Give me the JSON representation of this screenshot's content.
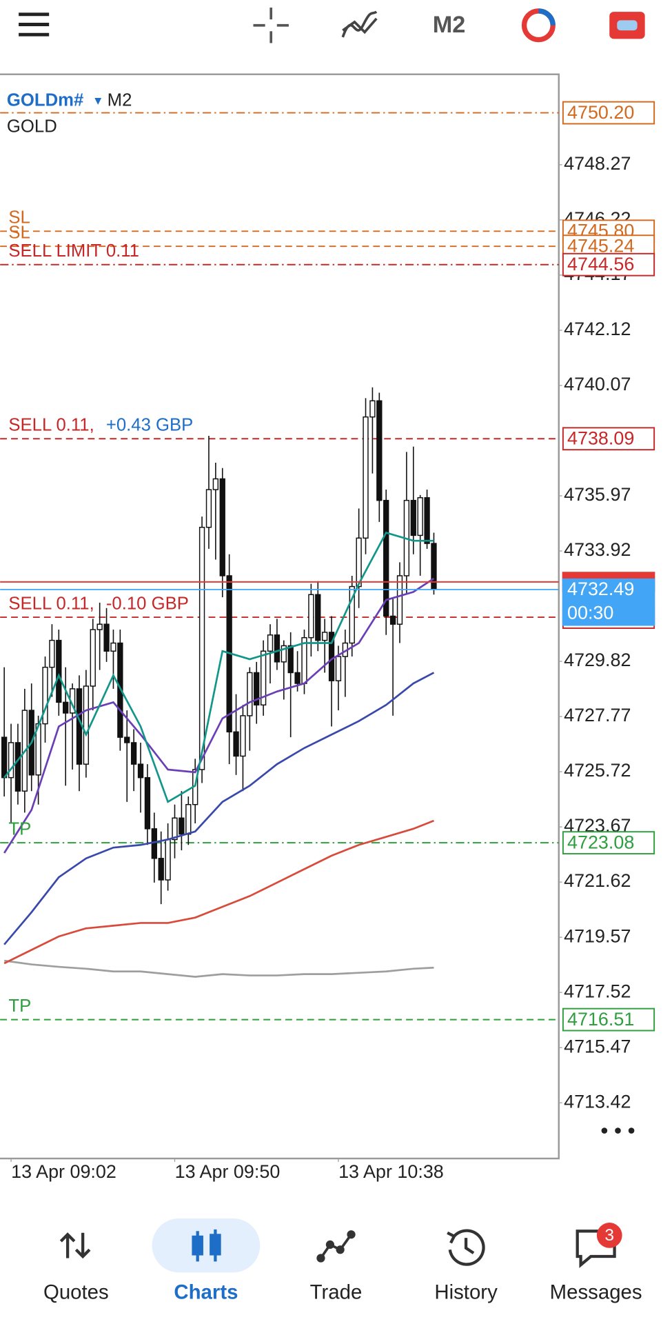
{
  "toolbar": {
    "timeframe": "M2"
  },
  "chart_data": {
    "type": "candlestick",
    "symbol": "GOLDm#",
    "timeframe": "M2",
    "description": "GOLD",
    "categories": [
      null,
      "13 Apr 09:02",
      null,
      null,
      null,
      null,
      null,
      null,
      null,
      null,
      null,
      null,
      null,
      null,
      null,
      null,
      null,
      null,
      null,
      null,
      null,
      null,
      null,
      null,
      null,
      "13 Apr 09:50",
      null,
      null,
      null,
      null,
      null,
      null,
      null,
      null,
      null,
      null,
      null,
      null,
      null,
      null,
      null,
      null,
      null,
      null,
      null,
      null,
      null,
      null,
      null,
      "13 Apr 10:38",
      null,
      null,
      null,
      null,
      null,
      null,
      null,
      null,
      null,
      null,
      null,
      null,
      null,
      null
    ],
    "open": [
      4727.0,
      4725.5,
      4726.8,
      4725.0,
      4728.0,
      4725.6,
      4727.5,
      4729.6,
      4730.6,
      4728.3,
      4727.9,
      4728.8,
      4726.0,
      4728.9,
      4731.0,
      4731.2,
      4730.2,
      4730.5,
      4727.0,
      4726.8,
      4726.0,
      4725.5,
      4723.6,
      4722.5,
      4721.7,
      4723.2,
      4724.0,
      4723.4,
      4724.5,
      4725.8,
      4734.8,
      4736.2,
      4736.6,
      4733.0,
      4727.2,
      4726.3,
      4727.8,
      4729.4,
      4728.2,
      4730.2,
      4730.8,
      4729.8,
      4730.4,
      4729.4,
      4729.0,
      4730.7,
      4732.3,
      4730.6,
      4730.9,
      4729.1,
      4730.0,
      4730.5,
      4732.6,
      4734.4,
      4738.9,
      4739.5,
      4735.8,
      4731.5,
      4731.2,
      4733.0,
      4735.8,
      4734.5,
      4735.9,
      4734.2
    ],
    "high": [
      4729.6,
      4727.5,
      4727.5,
      4728.8,
      4729.0,
      4727.8,
      4730.0,
      4731.2,
      4731.0,
      4729.6,
      4729.0,
      4729.3,
      4729.5,
      4731.4,
      4732.0,
      4731.8,
      4731.0,
      4731.0,
      4728.0,
      4727.3,
      4726.8,
      4726.0,
      4724.2,
      4723.5,
      4723.8,
      4724.5,
      4725.0,
      4724.8,
      4726.2,
      4735.2,
      4738.2,
      4737.2,
      4737.0,
      4733.8,
      4728.6,
      4728.2,
      4729.6,
      4729.8,
      4730.6,
      4731.2,
      4731.4,
      4730.6,
      4730.9,
      4730.2,
      4731.0,
      4732.7,
      4732.8,
      4731.4,
      4731.5,
      4730.4,
      4731.0,
      4733.0,
      4735.5,
      4739.6,
      4740.0,
      4739.8,
      4736.2,
      4732.2,
      4733.5,
      4737.6,
      4737.8,
      4736.0,
      4736.2,
      4734.6
    ],
    "low": [
      4724.8,
      4723.8,
      4724.5,
      4724.2,
      4725.0,
      4724.5,
      4726.8,
      4728.5,
      4727.8,
      4725.2,
      4725.8,
      4725.0,
      4725.5,
      4728.0,
      4729.5,
      4729.8,
      4728.8,
      4726.5,
      4724.6,
      4725.0,
      4724.2,
      4723.0,
      4721.6,
      4720.8,
      4721.3,
      4722.5,
      4722.8,
      4723.0,
      4723.8,
      4725.3,
      4734.0,
      4733.6,
      4732.2,
      4726.0,
      4725.6,
      4725.0,
      4726.5,
      4727.5,
      4727.8,
      4729.0,
      4729.5,
      4728.4,
      4727.0,
      4728.7,
      4728.6,
      4730.0,
      4730.2,
      4729.4,
      4727.4,
      4728.0,
      4728.5,
      4730.0,
      4731.8,
      4733.8,
      4736.8,
      4735.0,
      4730.8,
      4727.8,
      4730.5,
      4732.3,
      4733.8,
      4733.0,
      4734.0,
      4732.3
    ],
    "close": [
      4725.5,
      4726.8,
      4725.0,
      4728.0,
      4725.6,
      4727.5,
      4729.6,
      4730.6,
      4728.3,
      4727.9,
      4728.8,
      4726.0,
      4728.9,
      4731.0,
      4731.2,
      4730.2,
      4730.5,
      4727.0,
      4726.8,
      4726.0,
      4725.5,
      4723.6,
      4722.5,
      4721.7,
      4723.2,
      4724.0,
      4723.4,
      4724.5,
      4725.8,
      4734.8,
      4736.2,
      4736.6,
      4733.0,
      4727.2,
      4726.3,
      4727.8,
      4729.4,
      4728.2,
      4730.2,
      4730.8,
      4729.8,
      4730.4,
      4729.4,
      4729.0,
      4730.7,
      4732.3,
      4730.6,
      4730.9,
      4729.1,
      4730.0,
      4730.5,
      4732.6,
      4734.4,
      4738.9,
      4739.5,
      4735.8,
      4731.5,
      4731.2,
      4733.0,
      4735.8,
      4734.5,
      4735.9,
      4734.2,
      4732.49
    ],
    "series": [
      {
        "color": "#9e9e9e",
        "x": [
          0,
          4,
          8,
          12,
          16,
          20,
          24,
          28,
          32,
          36,
          40,
          44,
          48,
          52,
          56,
          60,
          63
        ],
        "values": [
          4718.7,
          4718.56,
          4718.47,
          4718.4,
          4718.3,
          4718.3,
          4718.2,
          4718.1,
          4718.2,
          4718.15,
          4718.15,
          4718.2,
          4718.2,
          4718.25,
          4718.3,
          4718.4,
          4718.44
        ]
      },
      {
        "color": "#d84a3a",
        "x": [
          0,
          4,
          8,
          12,
          16,
          20,
          24,
          28,
          32,
          36,
          40,
          44,
          48,
          52,
          56,
          60,
          63
        ],
        "values": [
          4718.6,
          4719.1,
          4719.6,
          4719.9,
          4720.0,
          4720.1,
          4720.1,
          4720.3,
          4720.7,
          4721.1,
          4721.6,
          4722.1,
          4722.6,
          4723.0,
          4723.3,
          4723.6,
          4723.9
        ]
      },
      {
        "color": "#3949ab",
        "x": [
          0,
          4,
          8,
          12,
          16,
          20,
          24,
          28,
          32,
          36,
          40,
          44,
          48,
          52,
          56,
          60,
          63
        ],
        "values": [
          4719.3,
          4720.5,
          4721.8,
          4722.5,
          4722.9,
          4723.0,
          4723.2,
          4723.5,
          4724.6,
          4725.2,
          4726.0,
          4726.6,
          4727.1,
          4727.6,
          4728.2,
          4729.0,
          4729.4
        ]
      },
      {
        "color": "#6a3fb5",
        "x": [
          0,
          4,
          8,
          12,
          16,
          20,
          24,
          28,
          32,
          36,
          40,
          44,
          48,
          52,
          56,
          60,
          63
        ],
        "values": [
          4722.7,
          4724.3,
          4727.4,
          4728.0,
          4728.3,
          4727.1,
          4725.8,
          4725.7,
          4727.7,
          4728.3,
          4728.7,
          4729.0,
          4729.9,
          4730.5,
          4732.1,
          4732.4,
          4732.9
        ]
      },
      {
        "color": "#12968a",
        "x": [
          0,
          4,
          8,
          12,
          16,
          20,
          24,
          28,
          32,
          36,
          40,
          44,
          48,
          52,
          56,
          60,
          63
        ],
        "values": [
          4725.5,
          4726.8,
          4729.3,
          4727.1,
          4729.3,
          4727.4,
          4724.6,
          4725.2,
          4730.2,
          4729.9,
          4730.2,
          4730.5,
          4730.5,
          4732.7,
          4734.6,
          4734.3,
          4734.3
        ]
      }
    ],
    "ylim": [
      4711.35,
      4751.63
    ],
    "yticks": [
      4748.27,
      4746.22,
      4744.17,
      4742.12,
      4740.07,
      4735.97,
      4733.92,
      4729.82,
      4727.77,
      4725.72,
      4723.67,
      4721.62,
      4719.57,
      4717.52,
      4715.47,
      4713.42
    ],
    "levels": [
      {
        "value": 4750.2,
        "label": "4750.20",
        "color": "#d2691e",
        "style": "dashdot"
      },
      {
        "text": "SL",
        "value": 4745.8,
        "label": "4745.80",
        "color": "#d2691e",
        "style": "dash"
      },
      {
        "text": "SL",
        "value": 4745.24,
        "label": "4745.24",
        "color": "#d2691e",
        "style": "dash"
      },
      {
        "text": "SELL LIMIT 0.11",
        "value": 4744.56,
        "label": "4744.56",
        "color": "#c62828",
        "style": "dashdot"
      },
      {
        "text": "SELL 0.11,",
        "profit": "+0.43 GBP",
        "profit_color": "#1e6ec8",
        "value": 4738.09,
        "label": "4738.09",
        "color": "#c62828",
        "style": "dash"
      },
      {
        "text": "SELL 0.11,",
        "profit": "-0.10 GBP",
        "profit_color": "#c62828",
        "value": 4731.46,
        "color": "#c62828",
        "style": "dash"
      },
      {
        "text": "TP",
        "value": 4723.08,
        "label": "4723.08",
        "color": "#2e9e3e",
        "style": "dashdot"
      },
      {
        "text": "TP",
        "value": 4716.51,
        "label": "4716.51",
        "color": "#2e9e3e",
        "style": "dash"
      }
    ],
    "ask": {
      "value": 4732.77,
      "color": "#e53935"
    },
    "bid": {
      "value": 4732.49,
      "timer": "00:30",
      "color": "#42a5f5"
    }
  },
  "nav": {
    "items": [
      "Quotes",
      "Charts",
      "Trade",
      "History",
      "Messages"
    ],
    "badge": 3
  }
}
